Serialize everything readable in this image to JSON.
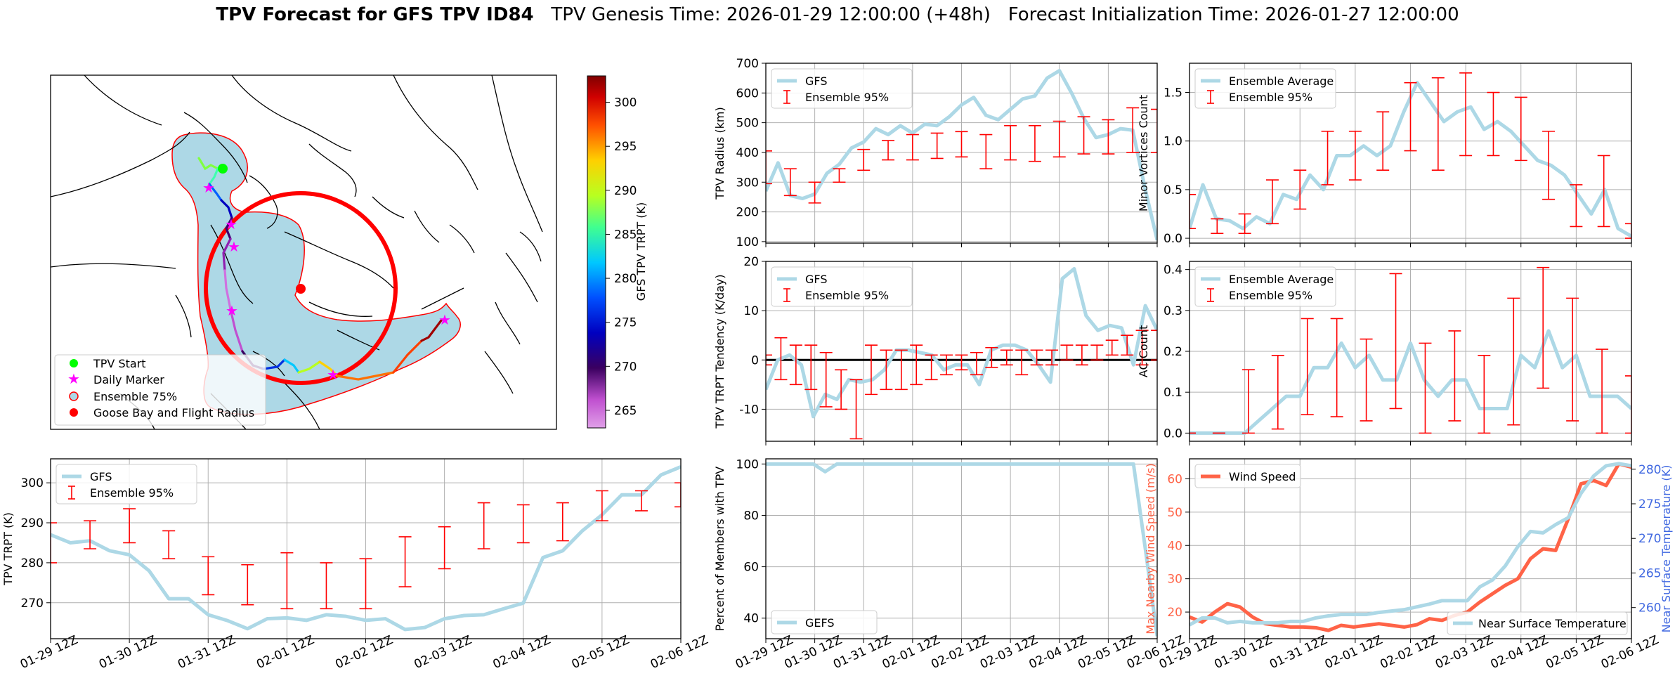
{
  "title": {
    "bold": "TPV Forecast for GFS TPV ID84",
    "genesis": "TPV Genesis Time: 2026-01-29 12:00:00 (+48h)",
    "init": "Forecast Initialization Time: 2026-01-27 12:00:00"
  },
  "map_panel": {
    "legend": [
      "TPV Start",
      "Daily Marker",
      "Ensemble 75%",
      "Goose Bay and Flight Radius"
    ],
    "colorbar_label": "GFS TPV TRPT (K)",
    "colorbar_ticks": [
      265,
      270,
      275,
      280,
      285,
      290,
      295,
      300
    ],
    "colorbar_range": [
      263,
      303
    ]
  },
  "time_labels": [
    "01-29 12Z",
    "01-30 12Z",
    "01-31 12Z",
    "02-01 12Z",
    "02-02 12Z",
    "02-03 12Z",
    "02-04 12Z",
    "02-05 12Z",
    "02-06 12Z"
  ],
  "colors": {
    "gfs": "#add8e6",
    "ensemble": "#ff0000",
    "wind": "#ff6347",
    "temp_axis": "#4169e1",
    "zero_line": "#000000"
  },
  "chart_data": [
    {
      "id": "radius",
      "type": "line",
      "ylabel": "TPV Radius (km)",
      "ylim": [
        95,
        700
      ],
      "yticks": [
        100,
        200,
        300,
        400,
        500,
        600,
        700
      ],
      "legend": [
        "GFS",
        "Ensemble 95%"
      ],
      "series": [
        {
          "name": "GFS",
          "values": [
            270,
            365,
            255,
            245,
            260,
            330,
            360,
            415,
            435,
            480,
            460,
            490,
            465,
            495,
            490,
            520,
            560,
            585,
            525,
            510,
            545,
            580,
            590,
            650,
            675,
            600,
            515,
            450,
            460,
            480,
            475,
            280,
            105
          ]
        }
      ],
      "errorbars": [
        [
          295,
          405
        ],
        [
          255,
          345
        ],
        [
          230,
          300
        ],
        [
          300,
          345
        ],
        [
          340,
          410
        ],
        [
          375,
          440
        ],
        [
          375,
          460
        ],
        [
          380,
          465
        ],
        [
          385,
          470
        ],
        [
          345,
          460
        ],
        [
          375,
          490
        ],
        [
          370,
          490
        ],
        [
          385,
          505
        ],
        [
          395,
          520
        ],
        [
          395,
          510
        ],
        [
          400,
          550
        ],
        [
          400,
          545
        ]
      ]
    },
    {
      "id": "tendency",
      "type": "line",
      "ylabel": "TPV TRPT Tendency (K/day)",
      "ylim": [
        -16.5,
        20
      ],
      "zero_line": true,
      "yticks": [
        -10,
        0,
        10,
        20
      ],
      "legend": [
        "GFS",
        "Ensemble 95%"
      ],
      "series": [
        {
          "name": "GFS",
          "values": [
            -6,
            0,
            1,
            -1,
            -11.5,
            -7,
            -8,
            -4,
            -4.5,
            -4,
            -2,
            2,
            2,
            1.5,
            1,
            -2,
            -1,
            -1,
            -5,
            2,
            3,
            3,
            2,
            -1,
            -4.5,
            16.5,
            18.5,
            9,
            6,
            7,
            6.5,
            -1,
            11,
            6
          ]
        }
      ],
      "errorbars": [
        [
          -1,
          1
        ],
        [
          -4,
          4.5
        ],
        [
          -5,
          3
        ],
        [
          -6,
          3
        ],
        [
          -9.5,
          1.5
        ],
        [
          -10,
          -2
        ],
        [
          -16,
          -4
        ],
        [
          -7,
          3
        ],
        [
          -6,
          2
        ],
        [
          -6,
          2
        ],
        [
          -5,
          3
        ],
        [
          -4,
          1
        ],
        [
          -3,
          1
        ],
        [
          -2,
          1
        ],
        [
          -3,
          1.5
        ],
        [
          -1.5,
          2.5
        ],
        [
          -1,
          2
        ],
        [
          -3,
          2
        ],
        [
          -1,
          2
        ],
        [
          -1,
          2
        ],
        [
          0,
          3
        ],
        [
          -1,
          3
        ],
        [
          0,
          3
        ],
        [
          1,
          4
        ],
        [
          1,
          5
        ],
        [
          -1,
          6
        ],
        [
          0,
          6
        ]
      ]
    },
    {
      "id": "trpt",
      "type": "line",
      "ylabel": "TPV TRPT (K)",
      "ylim": [
        261,
        306
      ],
      "yticks": [
        270,
        280,
        290,
        300
      ],
      "legend": [
        "GFS",
        "Ensemble 95%"
      ],
      "series": [
        {
          "name": "GFS",
          "values": [
            287,
            285,
            285.5,
            283,
            282,
            278,
            271,
            271,
            267,
            265.5,
            263.5,
            266,
            266.2,
            265.6,
            267,
            266.6,
            265.6,
            266,
            263.3,
            263.8,
            266,
            266.8,
            267,
            268.5,
            269.9,
            281.3,
            283,
            288,
            292,
            297,
            297,
            302,
            304
          ]
        }
      ],
      "errorbars": [
        [
          280,
          290
        ],
        [
          283.5,
          290.5
        ],
        [
          285,
          293.5
        ],
        [
          281,
          288
        ],
        [
          272,
          281.5
        ],
        [
          269.5,
          279.5
        ],
        [
          268.5,
          282.5
        ],
        [
          268.5,
          280
        ],
        [
          268.5,
          281
        ],
        [
          274,
          286.5
        ],
        [
          278.5,
          289
        ],
        [
          283.5,
          295
        ],
        [
          285,
          294.5
        ],
        [
          285.5,
          295
        ],
        [
          290.5,
          298
        ],
        [
          293,
          298
        ],
        [
          294,
          300
        ]
      ]
    },
    {
      "id": "minor_vortices",
      "type": "line",
      "ylabel": "Minor Vortices Count",
      "ylim": [
        -0.05,
        1.8
      ],
      "yticks": [
        0.0,
        0.5,
        1.0,
        1.5
      ],
      "legend": [
        "Ensemble Average",
        "Ensemble 95%"
      ],
      "series": [
        {
          "name": "Ensemble Average",
          "values": [
            0.1,
            0.55,
            0.2,
            0.18,
            0.1,
            0.22,
            0.15,
            0.45,
            0.4,
            0.65,
            0.5,
            0.85,
            0.85,
            0.95,
            0.85,
            0.95,
            1.3,
            1.6,
            1.4,
            1.2,
            1.3,
            1.35,
            1.12,
            1.2,
            1.1,
            0.95,
            0.8,
            0.75,
            0.65,
            0.45,
            0.25,
            0.5,
            0.1,
            0.02
          ]
        }
      ],
      "errorbars": [
        [
          0.1,
          0.45
        ],
        [
          0.05,
          0.2
        ],
        [
          0.05,
          0.25
        ],
        [
          0.15,
          0.6
        ],
        [
          0.3,
          0.7
        ],
        [
          0.55,
          1.1
        ],
        [
          0.6,
          1.1
        ],
        [
          0.7,
          1.3
        ],
        [
          0.9,
          1.6
        ],
        [
          0.7,
          1.65
        ],
        [
          0.85,
          1.7
        ],
        [
          0.85,
          1.5
        ],
        [
          0.8,
          1.45
        ],
        [
          0.4,
          1.1
        ],
        [
          0.12,
          0.55
        ],
        [
          0.12,
          0.85
        ],
        [
          0.0,
          0.15
        ]
      ]
    },
    {
      "id": "ac_count",
      "type": "line",
      "ylabel": "AC Count",
      "ylim": [
        -0.02,
        0.42
      ],
      "yticks": [
        0.0,
        0.1,
        0.2,
        0.3,
        0.4
      ],
      "legend": [
        "Ensemble Average",
        "Ensemble 95%"
      ],
      "series": [
        {
          "name": "Ensemble Average",
          "values": [
            0,
            0,
            0,
            0,
            0,
            0.03,
            0.06,
            0.09,
            0.09,
            0.16,
            0.16,
            0.22,
            0.16,
            0.19,
            0.13,
            0.13,
            0.22,
            0.13,
            0.09,
            0.13,
            0.13,
            0.06,
            0.06,
            0.06,
            0.19,
            0.16,
            0.25,
            0.16,
            0.19,
            0.09,
            0.09,
            0.09,
            0.06
          ]
        }
      ],
      "errorbars": [
        [
          0,
          0
        ],
        [
          0,
          0
        ],
        [
          0,
          0.155
        ],
        [
          0.01,
          0.19
        ],
        [
          0.045,
          0.28
        ],
        [
          0.04,
          0.28
        ],
        [
          0.03,
          0.23
        ],
        [
          0.06,
          0.39
        ],
        [
          0,
          0.22
        ],
        [
          0.03,
          0.25
        ],
        [
          0,
          0.19
        ],
        [
          0.02,
          0.33
        ],
        [
          0.11,
          0.405
        ],
        [
          0.03,
          0.33
        ],
        [
          0,
          0.205
        ],
        [
          0,
          0.14
        ]
      ]
    },
    {
      "id": "members",
      "type": "line",
      "ylabel": "Percent of Members with TPV",
      "ylim": [
        32,
        102
      ],
      "yticks": [
        40,
        60,
        80,
        100
      ],
      "legend": [
        "GEFS"
      ],
      "series": [
        {
          "name": "GEFS",
          "values": [
            100,
            100,
            100,
            100,
            100,
            97,
            100,
            100,
            100,
            100,
            100,
            100,
            100,
            100,
            100,
            100,
            100,
            100,
            100,
            100,
            100,
            100,
            100,
            100,
            100,
            100,
            100,
            100,
            100,
            100,
            100,
            100,
            67,
            33
          ]
        }
      ]
    },
    {
      "id": "wind_temp",
      "type": "line",
      "ylabel": "Max Nearby Wind Speed (m/s)",
      "ylabel_right": "Near Surface Temperature (K)",
      "ylim": [
        12,
        66
      ],
      "yticks": [
        20,
        30,
        40,
        50,
        60
      ],
      "ylim_right": [
        255.5,
        281.5
      ],
      "yticks_right": [
        260,
        265,
        270,
        275,
        280
      ],
      "legend": [
        "Wind Speed"
      ],
      "legend_right": [
        "Near Surface Temperature"
      ],
      "series": [
        {
          "name": "Wind Speed",
          "values": [
            18.5,
            17,
            20,
            22.5,
            21.5,
            18.5,
            16.5,
            16,
            15.5,
            15.5,
            15.3,
            14.5,
            16,
            15.5,
            16,
            16.5,
            16,
            15.5,
            16.2,
            18,
            17.5,
            19,
            20,
            23,
            25.5,
            28,
            30,
            36,
            39,
            38.5,
            48,
            58.5,
            59.5,
            58,
            64.5,
            63.5
          ]
        },
        {
          "name": "Near Surface Temperature",
          "values": [
            257.5,
            258.5,
            258.5,
            257.8,
            258,
            257.8,
            257.8,
            257.8,
            258,
            258,
            258.5,
            258.8,
            259,
            259,
            259,
            259.3,
            259.5,
            259.7,
            260.1,
            260.5,
            261,
            261,
            261,
            263,
            264,
            266,
            268.8,
            271,
            270.8,
            272,
            273,
            276.5,
            279,
            280.5,
            280.8,
            280.5
          ]
        }
      ]
    }
  ]
}
